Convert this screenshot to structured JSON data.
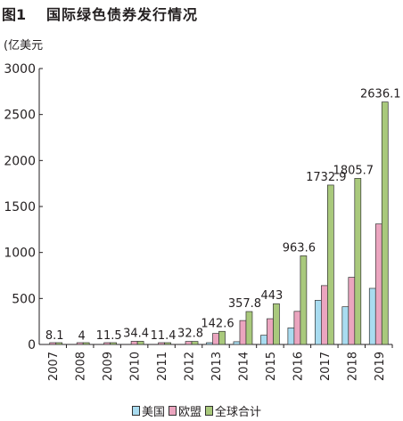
{
  "figure": {
    "label": "图1",
    "title": "国际绿色债券发行情况"
  },
  "chart_data": {
    "type": "bar",
    "ylabel": "(亿美元",
    "categories": [
      "2007",
      "2008",
      "2009",
      "2010",
      "2011",
      "2012",
      "2013",
      "2014",
      "2015",
      "2016",
      "2017",
      "2018",
      "2019"
    ],
    "ylim": [
      0,
      3000
    ],
    "yticks": [
      0,
      500,
      1000,
      1500,
      2000,
      2500,
      3000
    ],
    "grid": false,
    "legend_position": "bottom",
    "series": [
      {
        "name": "美国",
        "color": "#a9dcf0",
        "values": [
          0,
          0,
          0,
          0,
          0,
          0,
          10,
          30,
          100,
          180,
          480,
          410,
          610
        ]
      },
      {
        "name": "欧盟",
        "color": "#eba5bf",
        "values": [
          8.1,
          4,
          11.5,
          34.4,
          11.4,
          32.8,
          120,
          260,
          280,
          360,
          640,
          730,
          1310
        ]
      },
      {
        "name": "全球合计",
        "color": "#a9c97c",
        "values": [
          8.1,
          4,
          11.5,
          34.4,
          11.4,
          32.8,
          142.6,
          357.8,
          443,
          963.6,
          1732.9,
          1805.7,
          2636.1
        ]
      }
    ],
    "data_labels": [
      "8.1",
      "4",
      "11.5",
      "34.4",
      "11.4",
      "32.8",
      "142.6",
      "357.8",
      "443",
      "963.6",
      "1732.9",
      "1805.7",
      "2636.1"
    ]
  }
}
